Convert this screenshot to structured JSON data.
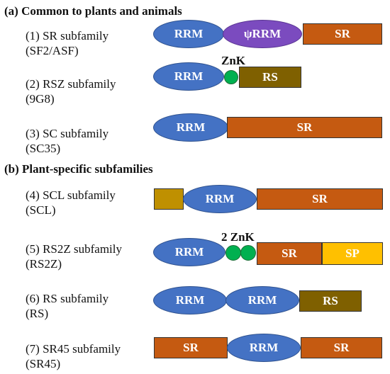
{
  "sections": {
    "a_title": "(a) Common to plants and animals",
    "b_title": "(b) Plant-specific subfamilies"
  },
  "families": [
    {
      "line1": "(1) SR subfamily",
      "line2": "(SF2/ASF)"
    },
    {
      "line1": "(2) RSZ subfamily",
      "line2": "(9G8)"
    },
    {
      "line1": "(3) SC subfamily",
      "line2": "(SC35)"
    },
    {
      "line1": "(4) SCL subfamily",
      "line2": "(SCL)"
    },
    {
      "line1": "(5) RS2Z subfamily",
      "line2": "(RS2Z)"
    },
    {
      "line1": "(6) RS subfamily",
      "line2": "(RS)"
    },
    {
      "line1": "(7) SR45 subfamily",
      "line2": "(SR45)"
    }
  ],
  "domains": {
    "rrm": "RRM",
    "psi_rrm": "ψRRM",
    "sr": "SR",
    "rs": "RS",
    "sp": "SP",
    "znk": "ZnK",
    "two_znk": "2 ZnK"
  },
  "colors": {
    "rrm": "#4472c4",
    "psi_rrm": "#7b4bbf",
    "sr": "#c55a11",
    "rs": "#7f6000",
    "sp": "#ffc000",
    "scl_nterm": "#bf9000",
    "znk": "#00b050"
  }
}
